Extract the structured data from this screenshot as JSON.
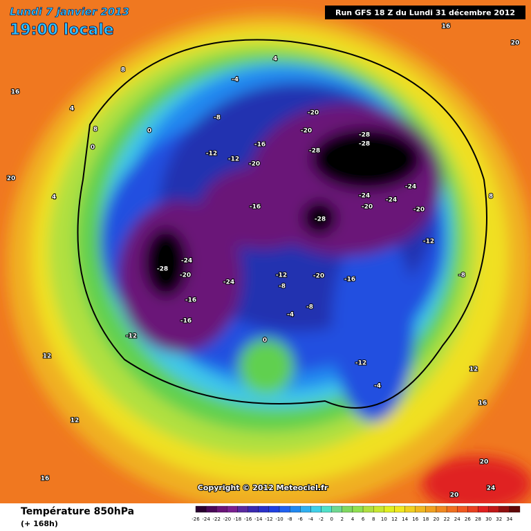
{
  "header": {
    "date": "Lundi 7 janvier 2013",
    "time": "19:00 locale",
    "run": "Run GFS 18 Z du Lundi 31 décembre 2012"
  },
  "copyright": "Copyright © 2012 Meteociel.fr",
  "footer": {
    "title": "Température 850hPa",
    "lead": "(+ 168h)"
  },
  "contour_labels": [
    -28,
    -28,
    -28,
    -28,
    -28,
    -24,
    -24,
    -24,
    -24,
    -24,
    -20,
    -20,
    -20,
    -20,
    -20,
    -20,
    -20,
    -16,
    -16,
    -16,
    -16,
    -16,
    -12,
    -12,
    -12,
    -12,
    -12,
    -12,
    -8,
    -8,
    -8,
    -8,
    -4,
    -4,
    -4,
    0,
    0,
    0,
    4,
    4,
    4,
    8,
    8,
    8,
    12,
    12,
    12,
    16,
    16,
    16,
    16,
    20,
    20,
    20,
    20,
    24
  ],
  "legend": {
    "levels": [
      -26,
      -24,
      -22,
      -20,
      -18,
      -16,
      -14,
      -12,
      -10,
      -8,
      -6,
      -4,
      -2,
      0,
      2,
      4,
      6,
      8,
      10,
      12,
      14,
      16,
      18,
      20,
      22,
      24,
      26,
      28,
      30,
      32,
      34
    ],
    "colors": [
      "#2a0030",
      "#4a0858",
      "#6a1478",
      "#7a2090",
      "#5a2aa0",
      "#3a2ab0",
      "#2a30c8",
      "#2040e0",
      "#2060f0",
      "#2088f0",
      "#30b0f0",
      "#40d0e8",
      "#50e0c8",
      "#70d890",
      "#80d860",
      "#90e050",
      "#b0e040",
      "#c8e830",
      "#e0f020",
      "#f0e820",
      "#f0d020",
      "#f0b820",
      "#f0a020",
      "#f08820",
      "#f07020",
      "#f05820",
      "#e84020",
      "#e02020",
      "#c01818",
      "#901010",
      "#600808"
    ]
  }
}
